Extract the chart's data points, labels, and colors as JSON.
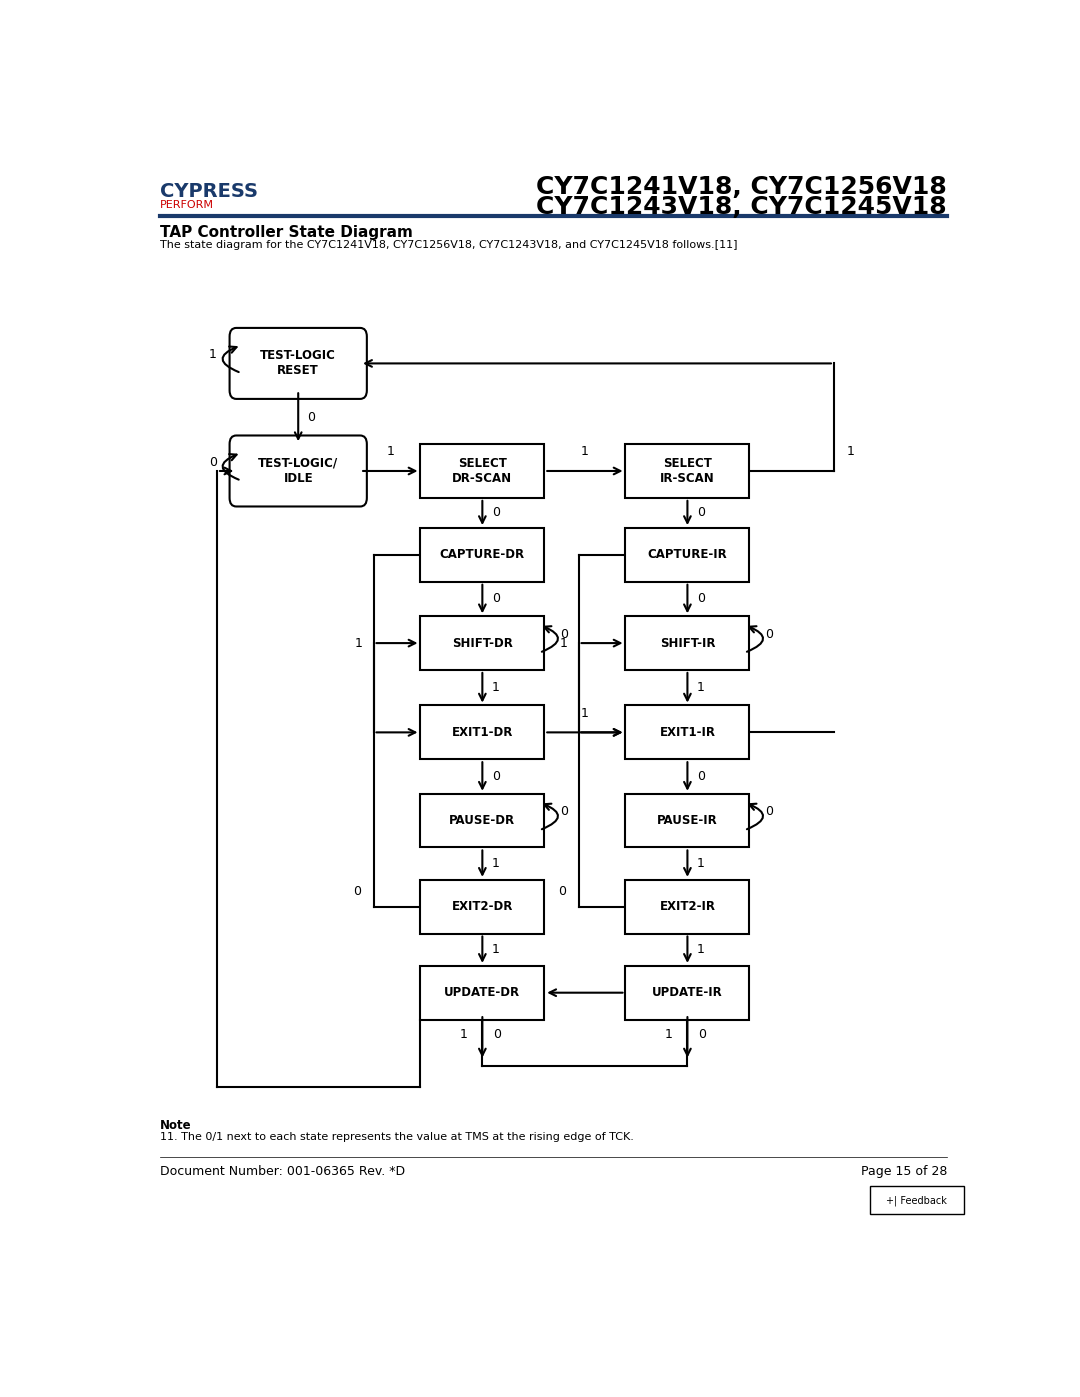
{
  "title_line1": "CY7C1241V18, CY7C1256V18",
  "title_line2": "CY7C1243V18, CY7C1245V18",
  "section_title": "TAP Controller State Diagram",
  "section_subtitle": "The state diagram for the CY7C1241V18, CY7C1256V18, CY7C1243V18, and CY7C1245V18 follows.",
  "note_title": "Note",
  "note_text": "11. The 0/1 next to each state represents the value at TMS at the rising edge of TCK.",
  "doc_number": "Document Number: 001-06365 Rev. *D",
  "page_text": "Page 15 of 28",
  "feedback_text": "+| Feedback",
  "bg_color": "white",
  "line_color": "#1a3a6b",
  "box_edge_color": "black",
  "box_edge_width": 1.5,
  "font_family": "DejaVu Sans",
  "title_fontsize": 18,
  "state_fontsize": 8.5,
  "label_fontsize": 9
}
